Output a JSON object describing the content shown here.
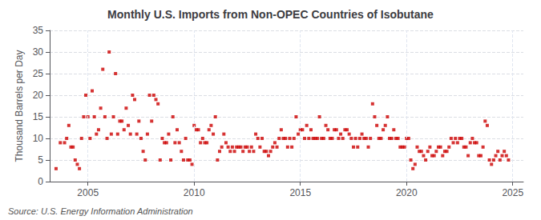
{
  "chart_data": {
    "type": "scatter",
    "title": "Monthly U.S. Imports from Non-OPEC Countries of Isobutane",
    "ylabel": "Thousand Barrels per Day",
    "annotation": "Source: U.S. Energy Information Administration",
    "color": "#cc0000",
    "marker": "square",
    "grid": true,
    "xlim": [
      2003.2,
      2025.5
    ],
    "xticks": [
      2005,
      2010,
      2015,
      2020,
      2025
    ],
    "ylim": [
      0,
      35
    ],
    "yticks": [
      0,
      5,
      10,
      15,
      20,
      25,
      30,
      35
    ],
    "x": [
      2003.5,
      2003.7,
      2003.9,
      2004.0,
      2004.1,
      2004.2,
      2004.3,
      2004.4,
      2004.5,
      2004.6,
      2004.7,
      2004.8,
      2004.9,
      2005.0,
      2005.1,
      2005.2,
      2005.3,
      2005.4,
      2005.5,
      2005.6,
      2005.7,
      2005.8,
      2005.9,
      2006.0,
      2006.1,
      2006.2,
      2006.3,
      2006.4,
      2006.5,
      2006.6,
      2006.7,
      2006.8,
      2006.9,
      2007.0,
      2007.1,
      2007.2,
      2007.3,
      2007.4,
      2007.5,
      2007.6,
      2007.7,
      2007.8,
      2007.9,
      2008.0,
      2008.1,
      2008.2,
      2008.3,
      2008.4,
      2008.5,
      2008.6,
      2008.7,
      2008.8,
      2008.9,
      2009.0,
      2009.1,
      2009.2,
      2009.3,
      2009.4,
      2009.5,
      2009.6,
      2009.7,
      2009.8,
      2009.9,
      2010.0,
      2010.1,
      2010.2,
      2010.3,
      2010.4,
      2010.5,
      2010.6,
      2010.7,
      2010.8,
      2010.9,
      2011.0,
      2011.1,
      2011.2,
      2011.3,
      2011.4,
      2011.5,
      2011.6,
      2011.7,
      2011.8,
      2011.9,
      2012.0,
      2012.1,
      2012.2,
      2012.3,
      2012.4,
      2012.5,
      2012.6,
      2012.7,
      2012.8,
      2012.9,
      2013.0,
      2013.1,
      2013.2,
      2013.3,
      2013.4,
      2013.5,
      2013.6,
      2013.7,
      2013.8,
      2013.9,
      2014.0,
      2014.1,
      2014.2,
      2014.3,
      2014.4,
      2014.5,
      2014.6,
      2014.7,
      2014.8,
      2014.9,
      2015.0,
      2015.1,
      2015.2,
      2015.3,
      2015.4,
      2015.5,
      2015.6,
      2015.7,
      2015.8,
      2015.9,
      2016.0,
      2016.1,
      2016.2,
      2016.3,
      2016.4,
      2016.5,
      2016.6,
      2016.7,
      2016.8,
      2016.9,
      2017.0,
      2017.1,
      2017.2,
      2017.3,
      2017.4,
      2017.5,
      2017.6,
      2017.7,
      2017.8,
      2017.9,
      2018.0,
      2018.1,
      2018.2,
      2018.3,
      2018.4,
      2018.5,
      2018.6,
      2018.7,
      2018.8,
      2018.9,
      2019.0,
      2019.1,
      2019.2,
      2019.3,
      2019.4,
      2019.5,
      2019.6,
      2019.7,
      2019.8,
      2019.9,
      2020.0,
      2020.1,
      2020.2,
      2020.3,
      2020.4,
      2020.5,
      2020.6,
      2020.7,
      2020.8,
      2020.9,
      2021.0,
      2021.1,
      2021.2,
      2021.3,
      2021.4,
      2021.5,
      2021.6,
      2021.7,
      2021.8,
      2021.9,
      2022.0,
      2022.1,
      2022.2,
      2022.3,
      2022.4,
      2022.5,
      2022.6,
      2022.7,
      2022.8,
      2022.9,
      2023.0,
      2023.1,
      2023.2,
      2023.3,
      2023.4,
      2023.5,
      2023.6,
      2023.7,
      2023.8,
      2023.9,
      2024.0,
      2024.1,
      2024.2,
      2024.3,
      2024.4,
      2024.5,
      2024.6,
      2024.7,
      2024.8
    ],
    "values": [
      3,
      9,
      9,
      10,
      13,
      8,
      8,
      5,
      4,
      3,
      10,
      15,
      20,
      15,
      10,
      21,
      15,
      11,
      12,
      17,
      26,
      15,
      10,
      30,
      11,
      15,
      25,
      11,
      14,
      14,
      12,
      17,
      13,
      11,
      20,
      19,
      11,
      14,
      10,
      7,
      5,
      11,
      20,
      14,
      20,
      19,
      18,
      5,
      10,
      9,
      9,
      11,
      5,
      15,
      9,
      12,
      9,
      7,
      5,
      10,
      5,
      5,
      4,
      13,
      12,
      12,
      9,
      10,
      9,
      9,
      12,
      13,
      11,
      15,
      5,
      7,
      8,
      11,
      9,
      8,
      7,
      8,
      7,
      8,
      8,
      8,
      7,
      8,
      8,
      7,
      8,
      7,
      11,
      10,
      8,
      10,
      7,
      7,
      6,
      7,
      8,
      9,
      8,
      10,
      12,
      10,
      10,
      8,
      10,
      8,
      10,
      15,
      11,
      12,
      12,
      10,
      13,
      10,
      12,
      10,
      10,
      10,
      15,
      10,
      10,
      13,
      12,
      10,
      10,
      12,
      12,
      10,
      11,
      10,
      12,
      12,
      11,
      10,
      8,
      10,
      8,
      10,
      11,
      10,
      10,
      8,
      10,
      18,
      15,
      13,
      10,
      10,
      12,
      13,
      15,
      10,
      10,
      12,
      10,
      10,
      8,
      8,
      8,
      10,
      10,
      5,
      3,
      4,
      8,
      7,
      7,
      6,
      5,
      7,
      8,
      6,
      6,
      7,
      8,
      8,
      6,
      7,
      7,
      8,
      10,
      9,
      10,
      9,
      10,
      10,
      8,
      8,
      6,
      9,
      10,
      9,
      9,
      6,
      6,
      8,
      14,
      13,
      5,
      4,
      5,
      6,
      7,
      5,
      6,
      7,
      6,
      5
    ]
  }
}
